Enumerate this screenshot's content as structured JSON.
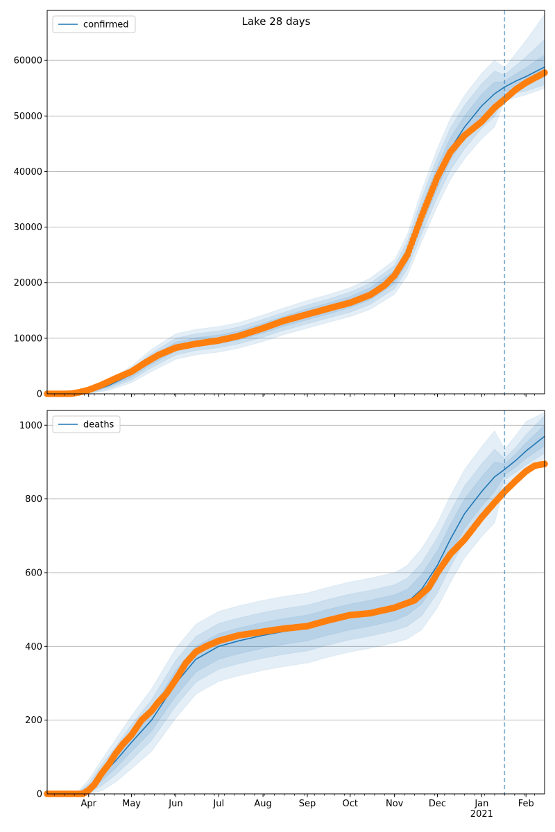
{
  "figure_title": "Lake 28 days",
  "chart_data": [
    {
      "type": "line",
      "title": "Lake 28 days",
      "legend": "confirmed",
      "legend_position": "top-left",
      "grid_y": true,
      "xlabel": "",
      "ylabel": "",
      "xlim": [
        "2020-03-03",
        "2021-02-14"
      ],
      "ylim": [
        0,
        69000
      ],
      "y_ticks": [
        0,
        10000,
        20000,
        30000,
        40000,
        50000,
        60000
      ],
      "forecast_start": "2021-01-17",
      "model_line": {
        "name": "confirmed",
        "x": [
          "2020-03-03",
          "2020-03-20",
          "2020-03-27",
          "2020-04-05",
          "2020-04-15",
          "2020-05-01",
          "2020-05-15",
          "2020-06-01",
          "2020-06-15",
          "2020-07-01",
          "2020-07-15",
          "2020-08-01",
          "2020-08-15",
          "2020-09-01",
          "2020-09-15",
          "2020-10-01",
          "2020-10-15",
          "2020-11-01",
          "2020-11-10",
          "2020-11-20",
          "2020-12-01",
          "2020-12-10",
          "2020-12-20",
          "2021-01-01",
          "2021-01-10",
          "2021-01-17",
          "2021-01-25",
          "2021-02-01",
          "2021-02-14"
        ],
        "y": [
          0,
          50,
          200,
          600,
          1500,
          3500,
          6000,
          8500,
          9300,
          9800,
          10500,
          11800,
          13000,
          14300,
          15300,
          16500,
          18000,
          21000,
          25000,
          32000,
          39000,
          44000,
          48000,
          51800,
          54000,
          55200,
          56300,
          57100,
          58800
        ]
      },
      "bands": [
        {
          "level": "inner",
          "upper_delta": [
            0,
            20,
            60,
            150,
            300,
            500,
            700,
            800,
            800,
            800,
            800,
            900,
            900,
            1000,
            1000,
            1000,
            1100,
            1200,
            1400,
            1800,
            2000,
            2000,
            2000,
            2100,
            2100,
            1000,
            1300,
            1600,
            2200
          ],
          "lower_delta": [
            0,
            20,
            60,
            150,
            300,
            500,
            700,
            800,
            800,
            800,
            800,
            900,
            900,
            1000,
            1000,
            1000,
            1100,
            1200,
            1400,
            1800,
            2000,
            2000,
            2000,
            2100,
            2100,
            1000,
            1200,
            1400,
            1800
          ]
        },
        {
          "level": "middle",
          "upper_delta": [
            0,
            40,
            120,
            300,
            600,
            1000,
            1300,
            1500,
            1500,
            1500,
            1500,
            1600,
            1600,
            1700,
            1700,
            1800,
            1900,
            2100,
            2500,
            3200,
            3600,
            3800,
            3900,
            4000,
            4100,
            2200,
            2800,
            3500,
            5000
          ],
          "lower_delta": [
            0,
            40,
            120,
            300,
            600,
            1000,
            1300,
            1500,
            1500,
            1500,
            1500,
            1600,
            1600,
            1700,
            1700,
            1800,
            1900,
            2100,
            2500,
            3200,
            3600,
            3800,
            3900,
            4000,
            4100,
            1800,
            2200,
            2600,
            3200
          ]
        },
        {
          "level": "outer",
          "upper_delta": [
            0,
            60,
            200,
            450,
            900,
            1500,
            2000,
            2300,
            2300,
            2300,
            2300,
            2400,
            2400,
            2500,
            2500,
            2600,
            2800,
            3100,
            3700,
            4600,
            5200,
            5500,
            5700,
            5900,
            6000,
            3500,
            5000,
            6500,
            9500
          ],
          "lower_delta": [
            0,
            60,
            200,
            450,
            900,
            1500,
            2000,
            2300,
            2300,
            2300,
            2300,
            2400,
            2400,
            2500,
            2500,
            2600,
            2800,
            3100,
            3700,
            4600,
            5200,
            5500,
            5700,
            5900,
            6000,
            2500,
            3000,
            3300,
            3800
          ]
        }
      ],
      "observed": {
        "x": [
          "2020-03-03",
          "2020-03-15",
          "2020-03-20",
          "2020-03-25",
          "2020-04-01",
          "2020-04-10",
          "2020-04-20",
          "2020-05-01",
          "2020-05-10",
          "2020-05-20",
          "2020-06-01",
          "2020-06-15",
          "2020-07-01",
          "2020-07-15",
          "2020-08-01",
          "2020-08-15",
          "2020-09-01",
          "2020-09-15",
          "2020-10-01",
          "2020-10-15",
          "2020-10-25",
          "2020-11-01",
          "2020-11-10",
          "2020-11-20",
          "2020-12-01",
          "2020-12-10",
          "2020-12-20",
          "2021-01-01",
          "2021-01-10",
          "2021-01-17",
          "2021-01-25",
          "2021-02-01",
          "2021-02-14"
        ],
        "y": [
          0,
          0,
          30,
          250,
          700,
          1600,
          2800,
          4000,
          5500,
          7000,
          8300,
          9000,
          9600,
          10400,
          11800,
          13100,
          14300,
          15300,
          16400,
          17800,
          19500,
          21300,
          25000,
          32000,
          39000,
          43500,
          46500,
          49000,
          51500,
          53000,
          54800,
          56000,
          57800
        ]
      }
    },
    {
      "type": "line",
      "legend": "deaths",
      "legend_position": "top-left",
      "grid_y": true,
      "xlabel": "",
      "ylabel": "",
      "xlim": [
        "2020-03-03",
        "2021-02-14"
      ],
      "ylim": [
        0,
        1040
      ],
      "y_ticks": [
        0,
        200,
        400,
        600,
        800,
        1000
      ],
      "forecast_start": "2021-01-17",
      "x_ticks": [
        "Apr",
        "May",
        "Jun",
        "Jul",
        "Aug",
        "Sep",
        "Oct",
        "Nov",
        "Dec",
        "Jan",
        "Feb"
      ],
      "x_tick_dates": [
        "2020-04-01",
        "2020-05-01",
        "2020-06-01",
        "2020-07-01",
        "2020-08-01",
        "2020-09-01",
        "2020-10-01",
        "2020-11-01",
        "2020-12-01",
        "2021-01-01",
        "2021-02-01"
      ],
      "year_label": "2021",
      "model_line": {
        "name": "deaths",
        "x": [
          "2020-03-03",
          "2020-03-25",
          "2020-04-01",
          "2020-04-10",
          "2020-04-20",
          "2020-05-01",
          "2020-05-15",
          "2020-06-01",
          "2020-06-15",
          "2020-07-01",
          "2020-07-15",
          "2020-08-01",
          "2020-08-15",
          "2020-09-01",
          "2020-09-15",
          "2020-10-01",
          "2020-10-15",
          "2020-11-01",
          "2020-11-10",
          "2020-11-20",
          "2020-12-01",
          "2020-12-10",
          "2020-12-20",
          "2021-01-01",
          "2021-01-10",
          "2021-01-17",
          "2021-01-25",
          "2021-02-01",
          "2021-02-14"
        ],
        "y": [
          0,
          0,
          10,
          50,
          90,
          140,
          200,
          300,
          365,
          400,
          415,
          430,
          440,
          450,
          465,
          480,
          490,
          505,
          520,
          555,
          620,
          690,
          760,
          820,
          860,
          880,
          905,
          930,
          970
        ]
      },
      "bands": [
        {
          "level": "inner",
          "upper_delta": [
            0,
            3,
            10,
            15,
            20,
            25,
            30,
            35,
            35,
            35,
            35,
            35,
            35,
            35,
            35,
            35,
            35,
            35,
            35,
            40,
            40,
            40,
            40,
            40,
            40,
            15,
            18,
            22,
            30
          ],
          "lower_delta": [
            0,
            3,
            10,
            15,
            20,
            25,
            30,
            35,
            35,
            35,
            35,
            35,
            35,
            35,
            35,
            35,
            35,
            35,
            35,
            40,
            40,
            40,
            40,
            40,
            40,
            15,
            18,
            20,
            26
          ]
        },
        {
          "level": "middle",
          "upper_delta": [
            0,
            5,
            18,
            28,
            38,
            48,
            55,
            62,
            62,
            62,
            62,
            62,
            62,
            62,
            62,
            62,
            62,
            62,
            65,
            72,
            75,
            75,
            75,
            75,
            75,
            30,
            36,
            44,
            56
          ],
          "lower_delta": [
            0,
            5,
            18,
            28,
            38,
            48,
            55,
            62,
            62,
            62,
            62,
            62,
            62,
            62,
            62,
            62,
            62,
            62,
            65,
            72,
            75,
            75,
            75,
            75,
            75,
            28,
            32,
            38,
            46
          ]
        },
        {
          "level": "outer",
          "upper_delta": [
            0,
            8,
            28,
            42,
            58,
            72,
            85,
            95,
            95,
            95,
            95,
            95,
            95,
            95,
            95,
            95,
            95,
            95,
            100,
            110,
            115,
            118,
            120,
            122,
            125,
            55,
            68,
            80,
            65
          ],
          "lower_delta": [
            0,
            8,
            28,
            42,
            58,
            72,
            85,
            95,
            95,
            95,
            95,
            95,
            95,
            95,
            95,
            95,
            95,
            95,
            100,
            110,
            115,
            118,
            120,
            122,
            125,
            45,
            50,
            55,
            60
          ]
        }
      ],
      "observed": {
        "x": [
          "2020-03-03",
          "2020-03-20",
          "2020-03-28",
          "2020-04-01",
          "2020-04-05",
          "2020-04-10",
          "2020-04-15",
          "2020-04-20",
          "2020-04-25",
          "2020-05-01",
          "2020-05-08",
          "2020-05-15",
          "2020-05-20",
          "2020-05-25",
          "2020-06-01",
          "2020-06-08",
          "2020-06-15",
          "2020-06-22",
          "2020-07-01",
          "2020-07-15",
          "2020-08-01",
          "2020-08-15",
          "2020-09-01",
          "2020-09-15",
          "2020-10-01",
          "2020-10-15",
          "2020-11-01",
          "2020-11-15",
          "2020-11-25",
          "2020-12-01",
          "2020-12-10",
          "2020-12-20",
          "2021-01-01",
          "2021-01-10",
          "2021-01-17",
          "2021-01-25",
          "2021-02-01",
          "2021-02-07",
          "2021-02-14"
        ],
        "y": [
          0,
          0,
          0,
          10,
          25,
          55,
          80,
          110,
          135,
          160,
          200,
          225,
          250,
          270,
          310,
          355,
          385,
          400,
          415,
          430,
          440,
          448,
          455,
          470,
          485,
          490,
          505,
          525,
          560,
          600,
          650,
          690,
          750,
          790,
          820,
          850,
          875,
          890,
          895
        ]
      }
    }
  ]
}
